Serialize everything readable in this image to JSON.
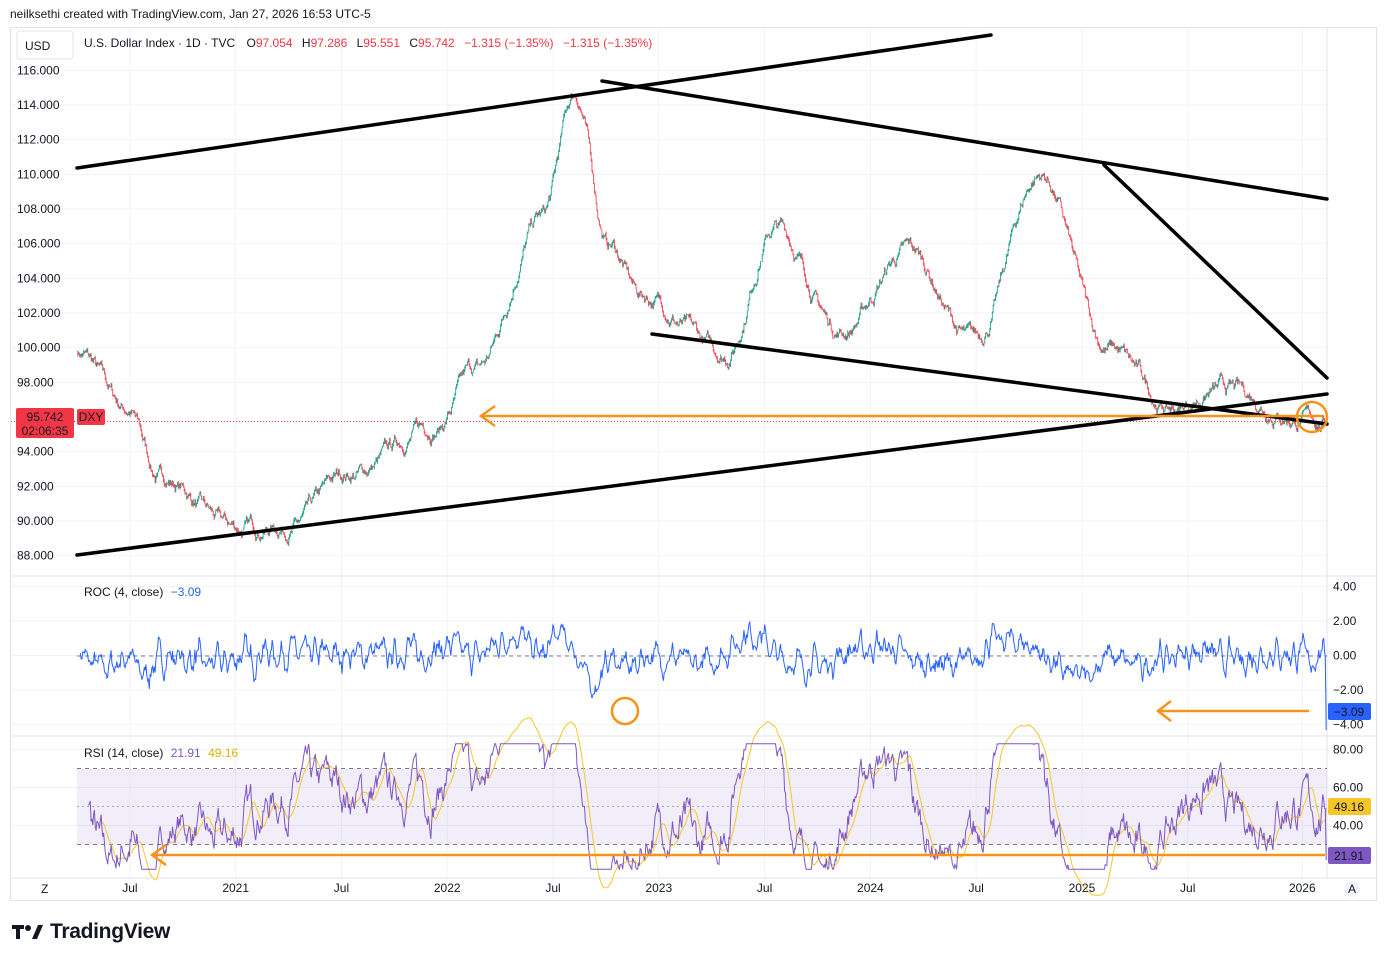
{
  "header": "neilksethi created with TradingView.com, Jan 27, 2026 16:53 UTC-5",
  "currency_button": "USD",
  "brand_name": "TradingView",
  "bottom_left_button": "Z",
  "bottom_right_button": "A",
  "legend": {
    "symbol": "U.S. Dollar Index · 1D · TVC",
    "o_label": "O",
    "o_value": "97.054",
    "h_label": "H",
    "h_value": "97.286",
    "l_label": "L",
    "l_value": "95.551",
    "c_label": "C",
    "c_value": "95.742",
    "change": "−1.315 (−1.35%)",
    "change2": "−1.315 (−1.35%)"
  },
  "colors": {
    "up": "#089981",
    "down": "#f23645",
    "roc": "#2962ff",
    "rsi": "#7e57c2",
    "rsi_ma": "#f7c628",
    "annotation": "#f7931a",
    "trendline": "#000000"
  },
  "chart_data": [
    {
      "type": "candlestick",
      "title": "U.S. Dollar Index · 1D · TVC",
      "ylim": [
        87,
        117
      ],
      "y_ticks": [
        "116.000",
        "114.000",
        "112.000",
        "110.000",
        "108.000",
        "106.000",
        "104.000",
        "102.000",
        "100.000",
        "98.000",
        "94.000",
        "92.000",
        "90.000",
        "88.000"
      ],
      "last_price_label": "95.742",
      "ticker_label": "DXY",
      "countdown_label": "02:06:35",
      "series": [
        {
          "name": "DXY",
          "dates": [
            "2020-05",
            "2020-07",
            "2020-09",
            "2021-01",
            "2021-05",
            "2021-07",
            "2022-01",
            "2022-03",
            "2022-07",
            "2022-09",
            "2022-11",
            "2023-01",
            "2023-07",
            "2023-10",
            "2024-01",
            "2024-05",
            "2024-09",
            "2025-01",
            "2025-04",
            "2025-07",
            "2025-09",
            "2026-01"
          ],
          "values": [
            99.8,
            96.5,
            92.5,
            89.5,
            89.8,
            92.7,
            95.5,
            98.5,
            107.5,
            114.5,
            106.0,
            103.0,
            99.6,
            107.0,
            101.0,
            105.5,
            100.3,
            110.0,
            100.0,
            96.4,
            97.5,
            95.74
          ]
        }
      ],
      "x_ticks": [
        "Jul",
        "2021",
        "Jul",
        "2022",
        "Jul",
        "2023",
        "Jul",
        "2024",
        "Jul",
        "2025",
        "Jul",
        "2026"
      ]
    },
    {
      "type": "line",
      "title": "ROC (4, close)",
      "last_value": "−3.09",
      "ylim": [
        -4.5,
        4.5
      ],
      "y_ticks": [
        "4.00",
        "2.00",
        "0.00",
        "−2.00",
        "−4.00"
      ]
    },
    {
      "type": "line",
      "title": "RSI (14, close)",
      "rsi_value": "21.91",
      "ma_value": "49.16",
      "ylim": [
        15,
        85
      ],
      "y_ticks": [
        "80.00",
        "60.00",
        "40.00"
      ],
      "bands": [
        30,
        50,
        70
      ]
    }
  ]
}
